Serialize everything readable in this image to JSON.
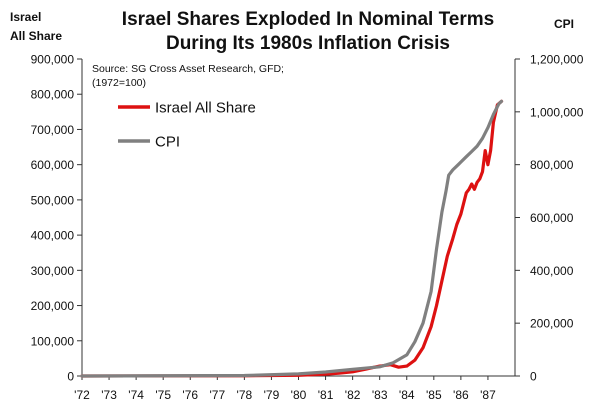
{
  "chart_data": {
    "type": "line",
    "title_lines": [
      "Israel Shares Exploded In Nominal Terms",
      "During Its 1980s Inflation Crisis"
    ],
    "y_left_label_lines": [
      "Israel",
      "All Share"
    ],
    "y_right_label": "CPI",
    "source_lines": [
      "Source: SG Cross Asset Research, GFD;",
      "(1972=100)"
    ],
    "x_ticks": [
      "'72",
      "'73",
      "'74",
      "'75",
      "'76",
      "'77",
      "'78",
      "'79",
      "'80",
      "'81",
      "'82",
      "'83",
      "'84",
      "'85",
      "'86",
      "'87"
    ],
    "xlim": [
      1972,
      1988
    ],
    "y_left": {
      "min": 0,
      "max": 900000,
      "step": 100000,
      "tick_labels": [
        "0",
        "100,000",
        "200,000",
        "300,000",
        "400,000",
        "500,000",
        "600,000",
        "700,000",
        "800,000",
        "900,000"
      ]
    },
    "y_right": {
      "min": 0,
      "max": 1200000,
      "step": 200000,
      "tick_labels": [
        "0",
        "200,000",
        "400,000",
        "600,000",
        "800,000",
        "1,000,000",
        "1,200,000"
      ]
    },
    "legend": {
      "position": "top-left"
    },
    "series": [
      {
        "name": "Israel All Share",
        "axis": "left",
        "color": "#dd1111",
        "points": [
          [
            1972,
            0
          ],
          [
            1978,
            500
          ],
          [
            1980,
            2000
          ],
          [
            1981,
            5000
          ],
          [
            1981.5,
            8000
          ],
          [
            1982,
            12000
          ],
          [
            1982.5,
            20000
          ],
          [
            1983,
            28000
          ],
          [
            1983.4,
            32000
          ],
          [
            1983.7,
            25000
          ],
          [
            1984,
            28000
          ],
          [
            1984.3,
            45000
          ],
          [
            1984.6,
            80000
          ],
          [
            1984.9,
            140000
          ],
          [
            1985.1,
            200000
          ],
          [
            1985.3,
            270000
          ],
          [
            1985.5,
            340000
          ],
          [
            1985.7,
            390000
          ],
          [
            1985.85,
            430000
          ],
          [
            1986,
            460000
          ],
          [
            1986.1,
            490000
          ],
          [
            1986.2,
            520000
          ],
          [
            1986.3,
            530000
          ],
          [
            1986.4,
            545000
          ],
          [
            1986.5,
            530000
          ],
          [
            1986.6,
            550000
          ],
          [
            1986.7,
            560000
          ],
          [
            1986.8,
            580000
          ],
          [
            1986.9,
            640000
          ],
          [
            1987,
            600000
          ],
          [
            1987.1,
            640000
          ],
          [
            1987.2,
            720000
          ],
          [
            1987.35,
            770000
          ],
          [
            1987.5,
            780000
          ]
        ]
      },
      {
        "name": "CPI",
        "axis": "right",
        "color": "#808080",
        "points": [
          [
            1972,
            0
          ],
          [
            1978,
            2000
          ],
          [
            1980,
            8000
          ],
          [
            1981,
            15000
          ],
          [
            1982,
            25000
          ],
          [
            1983,
            35000
          ],
          [
            1983.5,
            50000
          ],
          [
            1984,
            80000
          ],
          [
            1984.3,
            130000
          ],
          [
            1984.6,
            200000
          ],
          [
            1984.9,
            320000
          ],
          [
            1985.1,
            480000
          ],
          [
            1985.3,
            620000
          ],
          [
            1985.45,
            700000
          ],
          [
            1985.55,
            760000
          ],
          [
            1985.7,
            780000
          ],
          [
            1985.9,
            800000
          ],
          [
            1986,
            810000
          ],
          [
            1986.2,
            830000
          ],
          [
            1986.4,
            850000
          ],
          [
            1986.6,
            870000
          ],
          [
            1986.8,
            900000
          ],
          [
            1987,
            940000
          ],
          [
            1987.2,
            990000
          ],
          [
            1987.4,
            1030000
          ],
          [
            1987.5,
            1040000
          ]
        ]
      }
    ]
  }
}
